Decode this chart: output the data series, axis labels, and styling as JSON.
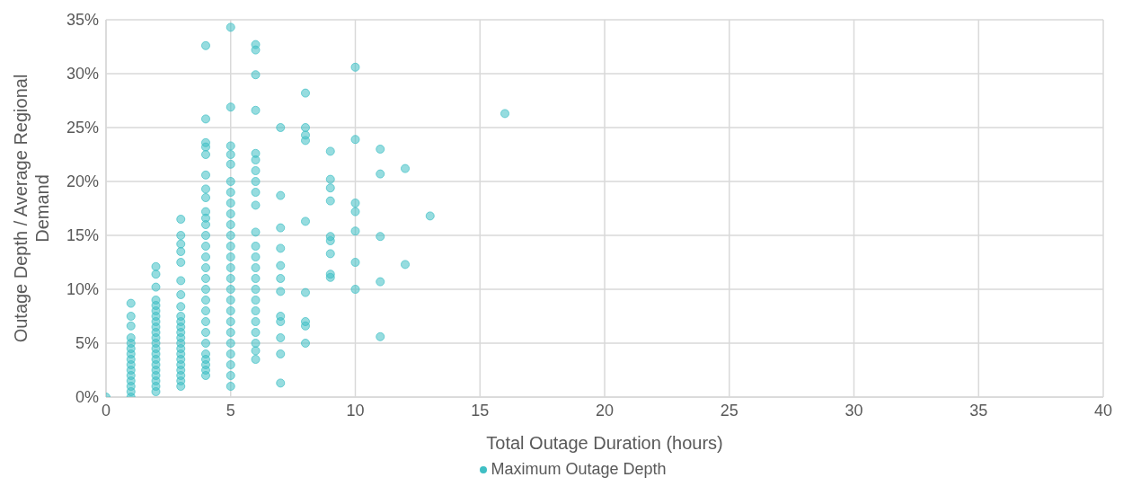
{
  "chart_data": {
    "type": "scatter",
    "xlabel": "Total Outage Duration (hours)",
    "ylabel": "Outage Depth / Average Regional Demand",
    "x": [
      0,
      1,
      1,
      1,
      1,
      1,
      1,
      1,
      1,
      1,
      1,
      1,
      1,
      1,
      1,
      1,
      2,
      2,
      2,
      2,
      2,
      2,
      2,
      2,
      2,
      2,
      2,
      2,
      2,
      2,
      2,
      2,
      2,
      2,
      2,
      2,
      2,
      3,
      3,
      3,
      3,
      3,
      3,
      3,
      3,
      3,
      3,
      3,
      3,
      3,
      3,
      3,
      3,
      3,
      3,
      3,
      3,
      3,
      3,
      4,
      4,
      4,
      4,
      4,
      4,
      4,
      4,
      4,
      4,
      4,
      4,
      4,
      4,
      4,
      4,
      4,
      4,
      4,
      4,
      4,
      4,
      4,
      4,
      4,
      4,
      4,
      5,
      5,
      5,
      5,
      5,
      5,
      5,
      5,
      5,
      5,
      5,
      5,
      5,
      5,
      5,
      5,
      5,
      5,
      5,
      5,
      5,
      5,
      5,
      5,
      5,
      6,
      6,
      6,
      6,
      6,
      6,
      6,
      6,
      6,
      6,
      6,
      6,
      6,
      6,
      6,
      6,
      6,
      6,
      6,
      6,
      6,
      6,
      6,
      7,
      7,
      7,
      7,
      7,
      7,
      7,
      7,
      7,
      7,
      7,
      7,
      8,
      8,
      8,
      8,
      8,
      8,
      8,
      8,
      8,
      9,
      9,
      9,
      9,
      9,
      9,
      9,
      9,
      9,
      10,
      10,
      10,
      10,
      10,
      10,
      10,
      11,
      11,
      11,
      11,
      11,
      12,
      12,
      13,
      16
    ],
    "series": [
      {
        "name": "Maximum Outage Depth",
        "color": "#3fbfc4",
        "values": [
          0,
          0,
          0.5,
          1,
          1.5,
          2,
          2.5,
          3,
          3.5,
          4,
          4.5,
          5,
          5.5,
          6.6,
          7.5,
          8.7,
          0.5,
          1,
          1.5,
          2,
          2.5,
          3,
          3.5,
          4,
          4.5,
          5,
          5.5,
          6,
          6.5,
          7,
          7.5,
          8,
          8.5,
          9,
          10.2,
          11.4,
          12.1,
          1,
          1.5,
          2,
          2.5,
          3,
          3.5,
          4,
          4.5,
          5,
          5.5,
          6,
          6.5,
          7,
          7.5,
          8.4,
          9.5,
          10.8,
          12.5,
          13.5,
          14.2,
          15,
          16.5,
          2,
          2.5,
          3,
          3.5,
          4,
          5,
          6,
          7,
          8,
          9,
          10,
          11,
          12,
          13,
          14,
          15,
          16,
          16.6,
          17.2,
          18.5,
          19.3,
          20.6,
          22.5,
          23.2,
          23.6,
          25.8,
          32.6,
          1,
          2,
          3,
          4,
          5,
          6,
          7,
          8,
          9,
          10,
          11,
          12,
          13,
          14,
          15,
          16,
          17,
          18,
          19,
          20,
          21.6,
          22.5,
          23.3,
          26.9,
          34.3,
          3.5,
          4.3,
          5,
          6,
          7,
          8,
          9,
          10,
          11,
          12,
          13,
          14,
          15.3,
          17.8,
          19,
          20,
          21,
          22,
          22.6,
          26.6,
          29.9,
          32.2,
          32.7,
          1.3,
          4,
          5.5,
          7,
          7.5,
          9.8,
          11,
          12.2,
          13.8,
          15.7,
          18.7,
          25,
          5,
          6.6,
          7,
          9.7,
          16.3,
          23.8,
          24.3,
          25,
          28.2,
          11.1,
          11.4,
          13.3,
          14.5,
          14.9,
          18.2,
          19.4,
          20.2,
          22.8,
          10,
          12.5,
          15.4,
          17.2,
          18,
          23.9,
          30.6,
          5.6,
          10.7,
          14.9,
          20.7,
          23,
          12.3,
          21.2,
          16.8,
          26.3
        ]
      }
    ],
    "xlim": [
      0,
      40
    ],
    "xticks": [
      0,
      5,
      10,
      15,
      20,
      25,
      30,
      35,
      40
    ],
    "ylim": [
      0,
      35
    ],
    "yticks": [
      {
        "value": 0,
        "label": "0%"
      },
      {
        "value": 5,
        "label": "5%"
      },
      {
        "value": 10,
        "label": "10%"
      },
      {
        "value": 15,
        "label": "15%"
      },
      {
        "value": 20,
        "label": "20%"
      },
      {
        "value": 25,
        "label": "25%"
      },
      {
        "value": 30,
        "label": "30%"
      },
      {
        "value": 35,
        "label": "35%"
      }
    ],
    "grid": true,
    "legend": "bottom",
    "marker": "circle"
  }
}
